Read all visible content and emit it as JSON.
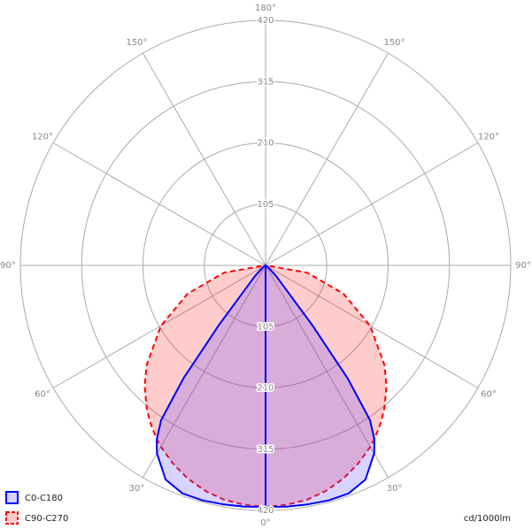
{
  "chart_data": {
    "type": "polar",
    "unit_label": "cd/1000lm",
    "rlim": [
      0,
      420
    ],
    "rticks": [
      105,
      210,
      315,
      420
    ],
    "angle_ticks": [
      {
        "value": 0,
        "label": "0°"
      },
      {
        "value": 30,
        "label": "30°"
      },
      {
        "value": 60,
        "label": "60°"
      },
      {
        "value": 90,
        "label": "90°"
      },
      {
        "value": 120,
        "label": "120°"
      },
      {
        "value": 150,
        "label": "150°"
      },
      {
        "value": 180,
        "label": "180°"
      }
    ],
    "angles": [
      0,
      5,
      10,
      15,
      20,
      25,
      30,
      32,
      34,
      36,
      38,
      40,
      45,
      50,
      60,
      70,
      80,
      90
    ],
    "series": [
      {
        "name": "C90-C270",
        "color": "#ff0000",
        "dashed": true,
        "values": [
          414,
          412,
          408,
          400,
          389,
          375,
          359,
          351,
          343,
          335,
          326,
          317,
          293,
          266,
          207,
          142,
          72,
          0
        ]
      },
      {
        "name": "C0-C180",
        "color": "#0000ff",
        "dashed": false,
        "values": [
          414,
          415,
          416,
          417,
          416,
          405,
          372,
          352,
          320,
          240,
          130,
          60,
          25,
          8,
          2,
          0,
          0,
          0
        ]
      }
    ],
    "legend_order": [
      1,
      0
    ]
  }
}
